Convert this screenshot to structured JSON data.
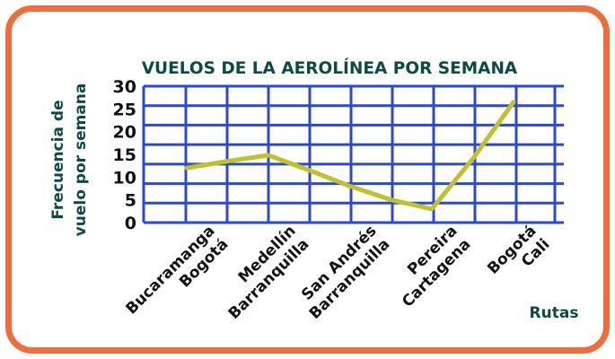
{
  "chart_data": {
    "type": "line",
    "title": "VUELOS DE LA AEROLÍNEA POR SEMANA",
    "ylabel": [
      "Frecuencia de",
      "vuelo por semana"
    ],
    "xlabel": "Rutas",
    "categories": [
      [
        "Bucaramanga",
        "Bogotá"
      ],
      [
        "Medellín",
        "Barranquilla"
      ],
      [
        "San Andrés",
        "Barranquilla"
      ],
      [
        "Pereira",
        "Cartagena"
      ],
      [
        "Bogotá",
        "Cali"
      ]
    ],
    "x": [
      1,
      2,
      3,
      4,
      5,
      6,
      7,
      8,
      9
    ],
    "values": [
      12,
      13.5,
      14.8,
      11.5,
      8,
      5,
      3,
      14,
      26.5
    ],
    "yticks": [
      0,
      5,
      10,
      15,
      20,
      25,
      30
    ],
    "ylim": [
      0,
      30
    ],
    "grid": true,
    "colors": {
      "line": "#bfc22b",
      "grid": "#2b47d6",
      "frame": "#f26b3a",
      "text": "#0c4a45"
    }
  }
}
